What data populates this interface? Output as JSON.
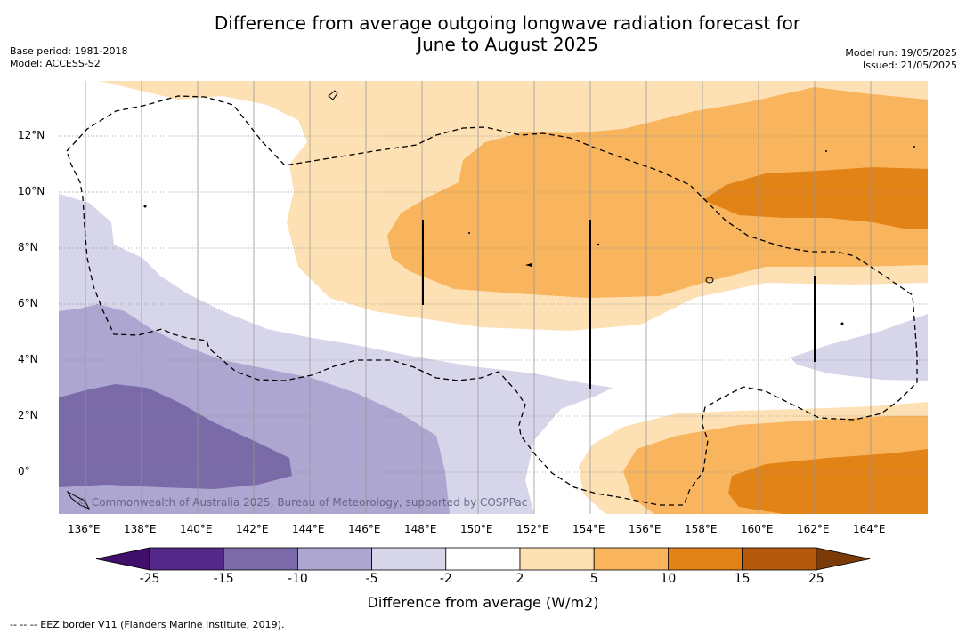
{
  "title_line1": "Difference from average outgoing longwave radiation forecast for",
  "title_line2": "June to August 2025",
  "meta_left": {
    "base_period": "Base period: 1981-2018",
    "model": "Model: ACCESS-S2"
  },
  "meta_right": {
    "model_run": "Model run: 19/05/2025",
    "issued": "Issued: 21/05/2025"
  },
  "lat_labels": [
    "12°N",
    "10°N",
    "8°N",
    "6°N",
    "4°N",
    "2°N",
    "0°"
  ],
  "lon_labels": [
    "136°E",
    "138°E",
    "140°E",
    "142°E",
    "144°E",
    "146°E",
    "148°E",
    "150°E",
    "152°E",
    "154°E",
    "156°E",
    "158°E",
    "160°E",
    "162°E",
    "164°E"
  ],
  "colorbar": {
    "ticks": [
      "-25",
      "-15",
      "-10",
      "-5",
      "-2",
      "2",
      "5",
      "10",
      "15",
      "25"
    ],
    "colors": [
      "#3f0f6b",
      "#55298a",
      "#7a6aa8",
      "#ada6d0",
      "#d6d5e9",
      "#ffffff",
      "#fde0b3",
      "#f9b45e",
      "#e28318",
      "#b35a0c",
      "#7a3b08"
    ],
    "title": "Difference from average (W/m2)"
  },
  "copyright": "© Commonwealth of Australia 2025, Bureau of Meteorology, supported by COSPPac",
  "footer": "--  --  -- EEZ border V11 (Flanders Marine Institute, 2019)."
}
